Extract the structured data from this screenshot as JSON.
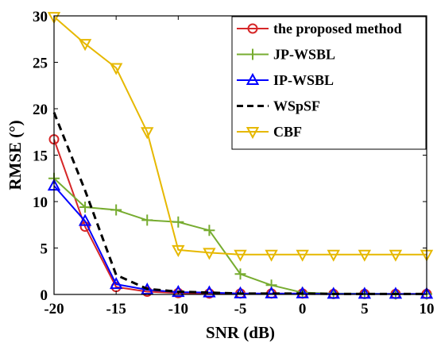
{
  "chart_data": {
    "type": "line",
    "title": "",
    "xlabel": "SNR (dB)",
    "ylabel": "RMSE (°)",
    "xlim": [
      -20,
      10
    ],
    "ylim": [
      0,
      30
    ],
    "xticks": [
      -20,
      -15,
      -10,
      -5,
      0,
      5,
      10
    ],
    "yticks": [
      0,
      5,
      10,
      15,
      20,
      25,
      30
    ],
    "xtick_labels": [
      "-20",
      "-15",
      "-10",
      "-5",
      "0",
      "5",
      "10"
    ],
    "ytick_labels": [
      "0",
      "5",
      "10",
      "15",
      "20",
      "25",
      "30"
    ],
    "grid": false,
    "legend_position": "top-right",
    "x": [
      -20,
      -17.5,
      -15,
      -12.5,
      -10,
      -7.5,
      -5,
      -2.5,
      0,
      2.5,
      5,
      7.5,
      10
    ],
    "series": [
      {
        "name": "the proposed method",
        "color": "#d62728",
        "marker": "circle",
        "dash": "solid",
        "values": [
          16.7,
          7.3,
          0.8,
          0.3,
          0.15,
          0.1,
          0.1,
          0.1,
          0.1,
          0.05,
          0.05,
          0.05,
          0.05
        ]
      },
      {
        "name": "JP-WSBL",
        "color": "#77ac30",
        "marker": "plus",
        "dash": "solid",
        "values": [
          12.5,
          9.4,
          9.1,
          8.0,
          7.8,
          6.9,
          2.2,
          1.0,
          0.2,
          0.1,
          0.1,
          0.05,
          0.05
        ]
      },
      {
        "name": "IP-WSBL",
        "color": "#0000ff",
        "marker": "triangle-up",
        "dash": "solid",
        "values": [
          11.7,
          7.9,
          1.1,
          0.5,
          0.25,
          0.2,
          0.1,
          0.1,
          0.1,
          0.05,
          0.05,
          0.05,
          0.05
        ]
      },
      {
        "name": "WSpSF",
        "color": "#000000",
        "marker": "none",
        "dash": "dashed",
        "values": [
          19.6,
          11.2,
          2.1,
          0.6,
          0.3,
          0.2,
          0.1,
          0.1,
          0.1,
          0.05,
          0.05,
          0.05,
          0.05
        ]
      },
      {
        "name": "CBF",
        "color": "#e6b800",
        "marker": "triangle-down",
        "dash": "solid",
        "values": [
          29.9,
          27.0,
          24.4,
          17.5,
          4.8,
          4.5,
          4.3,
          4.3,
          4.3,
          4.3,
          4.3,
          4.3,
          4.3
        ]
      }
    ]
  }
}
